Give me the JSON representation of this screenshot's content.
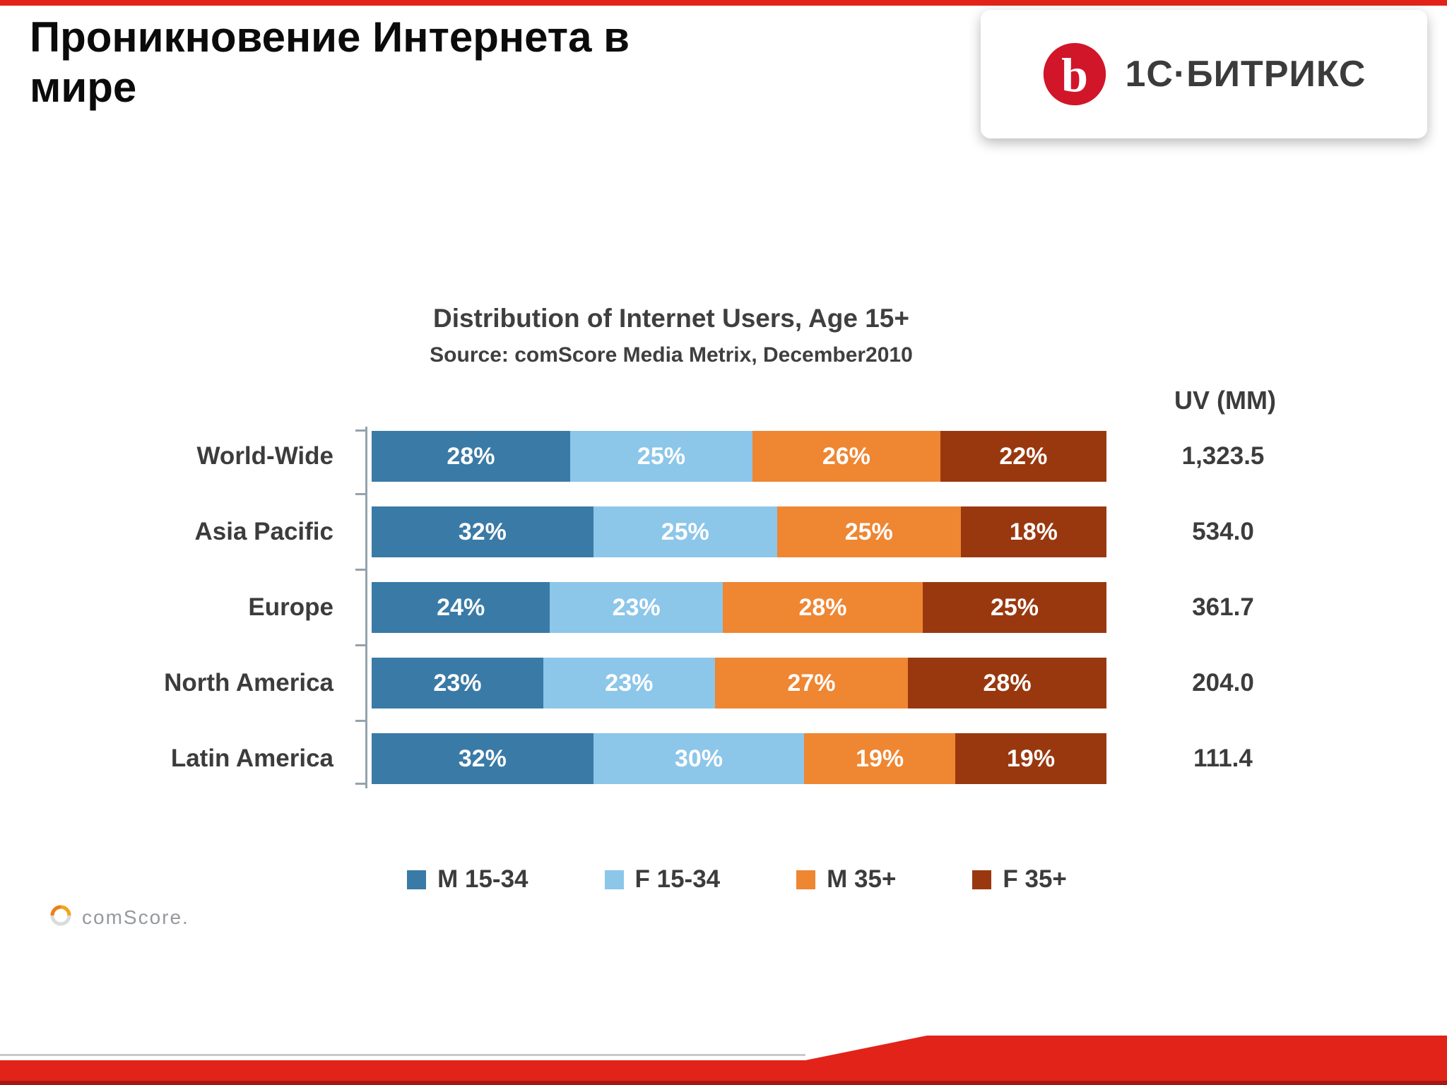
{
  "slide": {
    "title": "Проникновение Интернета в мире",
    "brand": {
      "logo_text": "1С·БИТРИКС",
      "logo_letter": "b",
      "accent_color": "#e2231a"
    },
    "footer_logo": {
      "text": "comScore."
    }
  },
  "chart_data": {
    "type": "bar",
    "orientation": "horizontal",
    "stacked": true,
    "title": "Distribution of Internet Users, Age 15+",
    "subtitle": "Source: comScore Media Metrix, December2010",
    "categories": [
      "World-Wide",
      "Asia Pacific",
      "Europe",
      "North America",
      "Latin America"
    ],
    "series": [
      {
        "name": "M 15-34",
        "color": "#3a7aa6",
        "values": [
          28,
          32,
          24,
          23,
          32
        ]
      },
      {
        "name": "F 15-34",
        "color": "#8cc6e9",
        "values": [
          25,
          25,
          23,
          23,
          30
        ]
      },
      {
        "name": "M 35+",
        "color": "#ef8632",
        "values": [
          26,
          25,
          28,
          27,
          19
        ]
      },
      {
        "name": "F 35+",
        "color": "#99380f",
        "values": [
          22,
          18,
          25,
          28,
          19
        ]
      }
    ],
    "value_suffix": "%",
    "uv_header": "UV (MM)",
    "uv_values": [
      "1,323.5",
      "534.0",
      "361.7",
      "204.0",
      "111.4"
    ],
    "xlim": [
      0,
      100
    ],
    "grid": false,
    "legend_position": "bottom"
  }
}
